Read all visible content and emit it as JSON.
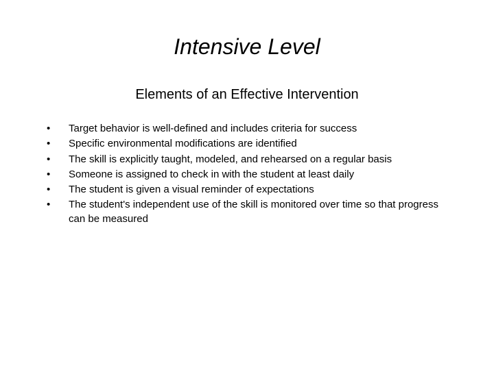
{
  "slide": {
    "title": "Intensive Level",
    "subtitle": "Elements of an Effective Intervention",
    "bullets": [
      "Target behavior is well-defined and includes criteria for success",
      "Specific environmental modifications are identified",
      "The skill is explicitly taught, modeled, and rehearsed on a regular basis",
      "Someone is assigned to check in with the student at least daily",
      "The student is given a visual reminder of expectations",
      "The student's independent use of the skill is monitored over time so that progress can be measured"
    ],
    "style": {
      "background_color": "#ffffff",
      "text_color": "#000000",
      "title_fontsize": 32,
      "title_fontstyle": "italic",
      "subtitle_fontsize": 20,
      "body_fontsize": 15,
      "font_family": "Arial"
    }
  }
}
